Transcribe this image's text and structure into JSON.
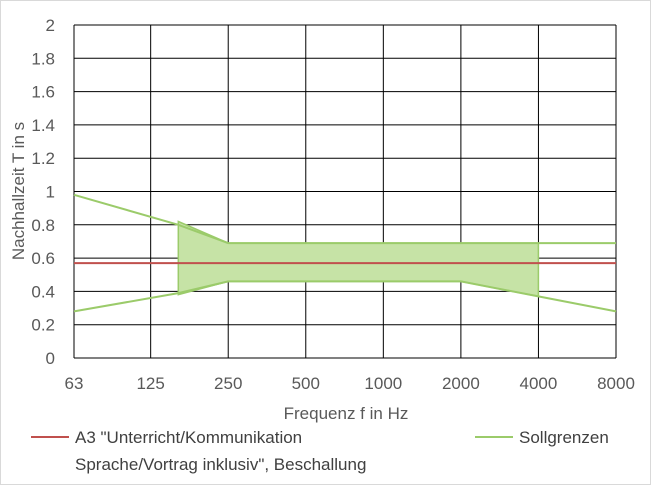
{
  "chart_data": {
    "type": "line",
    "xlabel": "Frequenz f in Hz",
    "ylabel": "Nachhallzeit T in s",
    "categories": [
      "63",
      "125",
      "250",
      "500",
      "1000",
      "2000",
      "4000",
      "8000"
    ],
    "ylim": [
      0,
      2
    ],
    "yticks": [
      "0",
      "0.2",
      "0.4",
      "0.6",
      "0.8",
      "1",
      "1.2",
      "1.4",
      "1.6",
      "1.8",
      "2"
    ],
    "grid": true,
    "legend_position": "bottom",
    "series": [
      {
        "name": "A3  \"Unterricht/Kommunikation\nSprache/Vortrag inklusiv\", Beschallung",
        "name_lines": [
          "A3  \"Unterricht/Kommunikation",
          "Sprache/Vortrag inklusiv\", Beschallung"
        ],
        "color": "#c0504d",
        "points": [
          [
            63,
            0.57
          ],
          [
            8000,
            0.57
          ]
        ]
      },
      {
        "name": "Sollgrenzen",
        "color": "#9bcb6a",
        "upper": [
          [
            63,
            0.98
          ],
          [
            160,
            0.8
          ],
          [
            250,
            0.69
          ],
          [
            8000,
            0.69
          ]
        ],
        "lower": [
          [
            63,
            0.28
          ],
          [
            160,
            0.39
          ],
          [
            250,
            0.46
          ],
          [
            2000,
            0.46
          ],
          [
            4000,
            0.37
          ],
          [
            8000,
            0.28
          ]
        ]
      }
    ],
    "tolerance_band": {
      "fill_color": "#c6e3a6",
      "x_range": [
        160,
        4000
      ],
      "upper": [
        [
          160,
          0.82
        ],
        [
          250,
          0.69
        ],
        [
          4000,
          0.69
        ]
      ],
      "lower": [
        [
          160,
          0.38
        ],
        [
          250,
          0.46
        ],
        [
          2000,
          0.46
        ],
        [
          4000,
          0.37
        ]
      ]
    }
  }
}
